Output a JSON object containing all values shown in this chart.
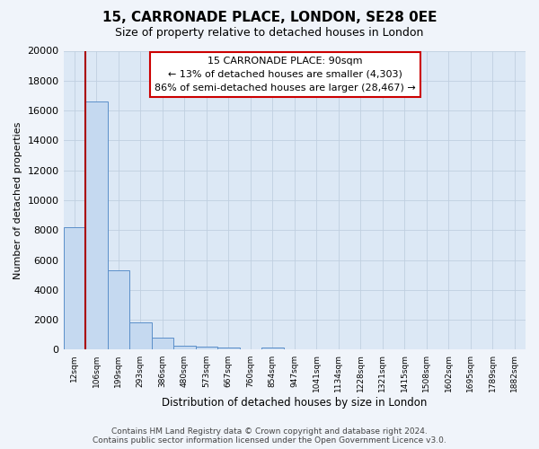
{
  "title": "15, CARRONADE PLACE, LONDON, SE28 0EE",
  "subtitle": "Size of property relative to detached houses in London",
  "xlabel": "Distribution of detached houses by size in London",
  "ylabel": "Number of detached properties",
  "categories": [
    "12sqm",
    "106sqm",
    "199sqm",
    "293sqm",
    "386sqm",
    "480sqm",
    "573sqm",
    "667sqm",
    "760sqm",
    "854sqm",
    "947sqm",
    "1041sqm",
    "1134sqm",
    "1228sqm",
    "1321sqm",
    "1415sqm",
    "1508sqm",
    "1602sqm",
    "1695sqm",
    "1789sqm",
    "1882sqm"
  ],
  "bar_values": [
    8200,
    16600,
    5300,
    1850,
    800,
    280,
    220,
    130,
    0,
    130,
    0,
    0,
    0,
    0,
    0,
    0,
    0,
    0,
    0,
    0,
    0
  ],
  "bar_color": "#c5d9f0",
  "bar_edge_color": "#5b8fc9",
  "property_line_color": "#aa0000",
  "ylim": [
    0,
    20000
  ],
  "yticks": [
    0,
    2000,
    4000,
    6000,
    8000,
    10000,
    12000,
    14000,
    16000,
    18000,
    20000
  ],
  "bg_color": "#dce8f5",
  "fig_bg_color": "#f0f4fa",
  "annotation_title": "15 CARRONADE PLACE: 90sqm",
  "annotation_line1": "← 13% of detached houses are smaller (4,303)",
  "annotation_line2": "86% of semi-detached houses are larger (28,467) →",
  "footer_line1": "Contains HM Land Registry data © Crown copyright and database right 2024.",
  "footer_line2": "Contains public sector information licensed under the Open Government Licence v3.0."
}
